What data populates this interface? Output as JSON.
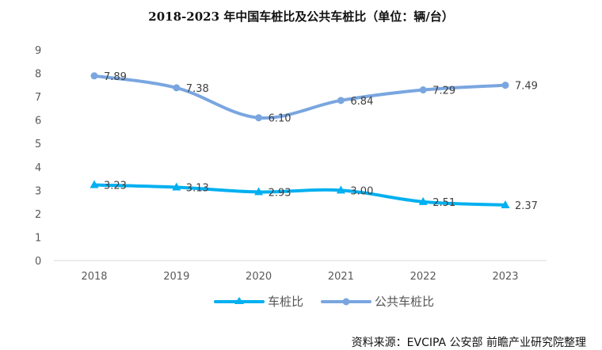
{
  "chart_data": {
    "type": "line",
    "title": "2018-2023 年中国车桩比及公共车桩比（单位：辆/台）",
    "categories": [
      "2018",
      "2019",
      "2020",
      "2021",
      "2022",
      "2023"
    ],
    "ylim": [
      0,
      9
    ],
    "yticks": [
      "0",
      "1",
      "2",
      "3",
      "4",
      "5",
      "6",
      "7",
      "8",
      "9"
    ],
    "grid": false,
    "legend_position": "bottom",
    "series": [
      {
        "name": "车桩比",
        "marker": "triangle",
        "color": "#00b0f0",
        "values": [
          3.23,
          3.13,
          2.93,
          3.0,
          2.51,
          2.37
        ],
        "labels": [
          "3.23",
          "3.13",
          "2.93",
          "3.00",
          "2.51",
          "2.37"
        ]
      },
      {
        "name": "公共车桩比",
        "marker": "circle",
        "color": "#7aa6e0",
        "values": [
          7.89,
          7.38,
          6.1,
          6.84,
          7.29,
          7.49
        ],
        "labels": [
          "7.89",
          "7.38",
          "6.10",
          "6.84",
          "7.29",
          "7.49"
        ]
      }
    ]
  },
  "source": "资料来源：EVCIPA  公安部  前瞻产业研究院整理"
}
